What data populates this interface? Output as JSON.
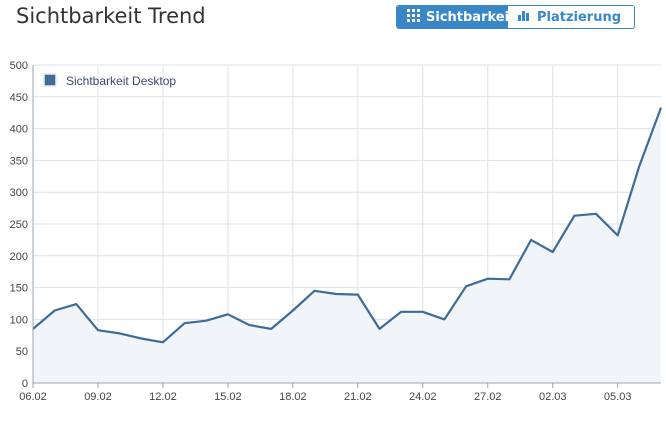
{
  "header": {
    "title": "Sichtbarkeit Trend",
    "buttons": [
      {
        "label": "Sichtbarkeit",
        "icon": "grid-icon",
        "active": true
      },
      {
        "label": "Platzierung",
        "icon": "bar-chart-icon",
        "active": false
      }
    ]
  },
  "colors": {
    "accent": "#3a87c8",
    "line": "#3d6c99",
    "area": "#f1f4f9",
    "grid": "#dde1ea"
  },
  "chart_data": {
    "type": "area",
    "title": "",
    "xlabel": "",
    "ylabel": "",
    "ylim": [
      0,
      500
    ],
    "yticks": [
      0,
      50,
      100,
      150,
      200,
      250,
      300,
      350,
      400,
      450,
      500
    ],
    "xtick_labels": [
      "06.02",
      "09.02",
      "12.02",
      "15.02",
      "18.02",
      "21.02",
      "24.02",
      "27.02",
      "02.03",
      "05.03"
    ],
    "grid": true,
    "legend": {
      "position": "top-left",
      "entries": [
        "Sichtbarkeit Desktop"
      ]
    },
    "x": [
      "06.02",
      "07.02",
      "08.02",
      "09.02",
      "10.02",
      "11.02",
      "12.02",
      "13.02",
      "14.02",
      "15.02",
      "16.02",
      "17.02",
      "18.02",
      "19.02",
      "20.02",
      "21.02",
      "22.02",
      "23.02",
      "24.02",
      "25.02",
      "26.02",
      "27.02",
      "28.02",
      "01.03",
      "02.03",
      "03.03",
      "04.03",
      "05.03",
      "06.03",
      "07.03"
    ],
    "series": [
      {
        "name": "Sichtbarkeit Desktop",
        "values": [
          85,
          114,
          124,
          83,
          78,
          70,
          64,
          94,
          98,
          108,
          91,
          85,
          114,
          145,
          140,
          139,
          85,
          112,
          112,
          100,
          152,
          164,
          163,
          225,
          206,
          263,
          266,
          232,
          341,
          433
        ]
      }
    ]
  }
}
